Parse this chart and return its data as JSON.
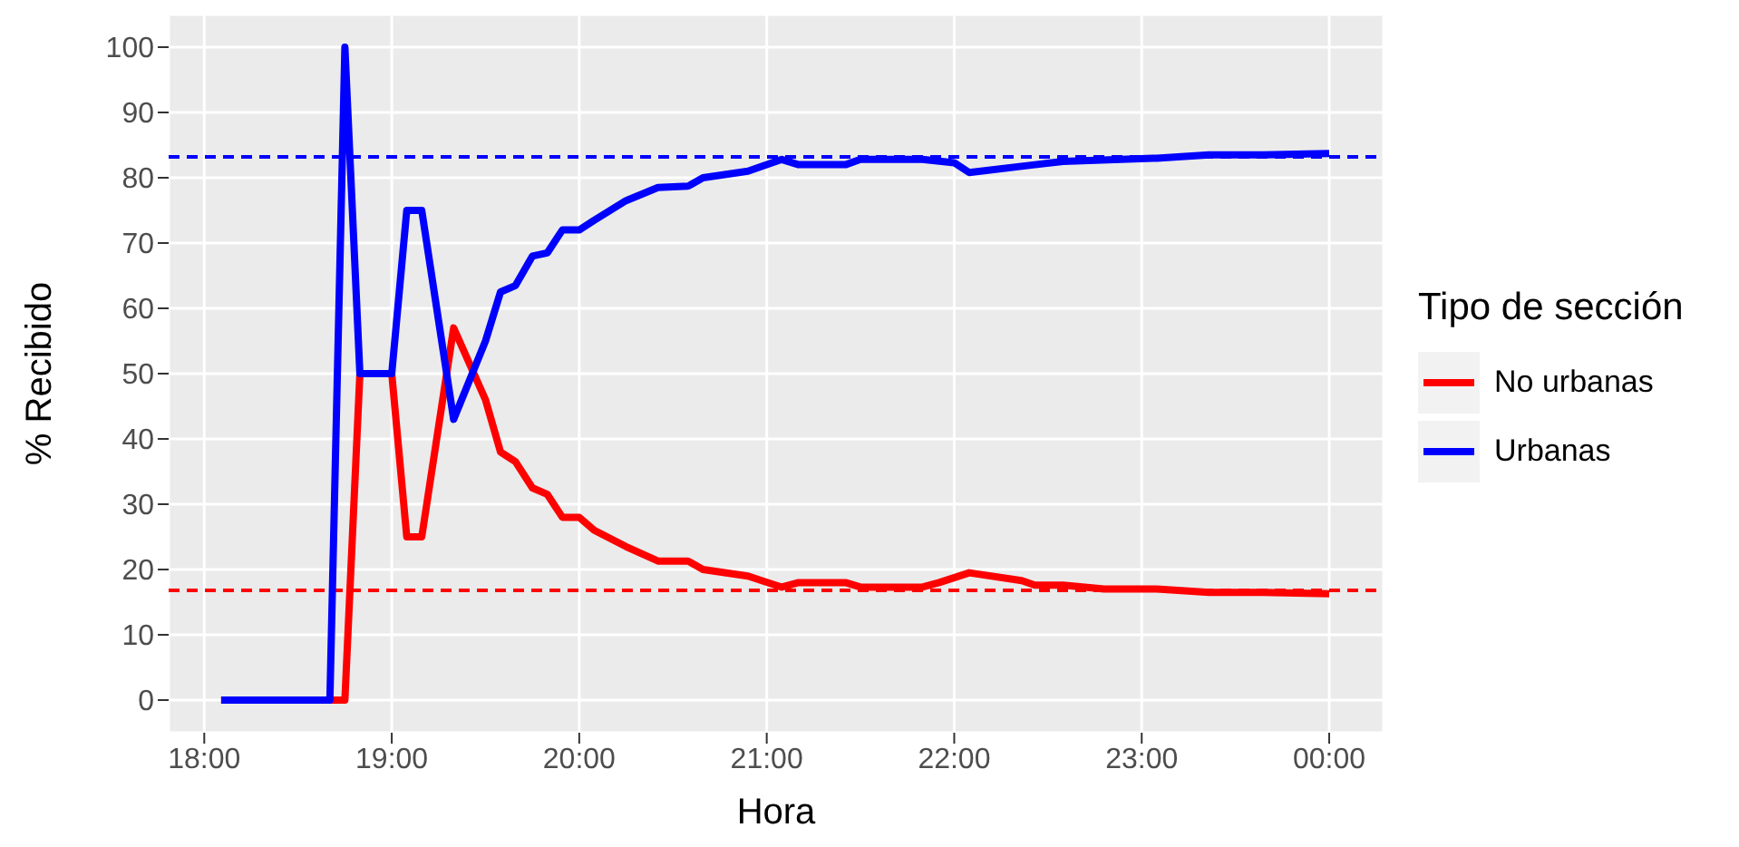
{
  "chart_data": {
    "type": "line",
    "xlabel": "Hora",
    "ylabel": "% Recibido",
    "legend_title": "Tipo de sección",
    "legend": "right",
    "grid": true,
    "line_style": "solid",
    "marker": "none",
    "xlim": [
      17.81,
      24.29
    ],
    "ylim": [
      -5,
      105
    ],
    "xticks": [
      {
        "value": 18,
        "label": "18:00"
      },
      {
        "value": 19,
        "label": "19:00"
      },
      {
        "value": 20,
        "label": "20:00"
      },
      {
        "value": 21,
        "label": "21:00"
      },
      {
        "value": 22,
        "label": "22:00"
      },
      {
        "value": 23,
        "label": "23:00"
      },
      {
        "value": 24,
        "label": "00:00"
      }
    ],
    "yticks": [
      0,
      10,
      20,
      30,
      40,
      50,
      60,
      70,
      80,
      90,
      100
    ],
    "series": [
      {
        "name": "No urbanas",
        "color": "#ff0000",
        "x": [
          18.09,
          18.75,
          18.83,
          19.0,
          19.08,
          19.16,
          19.33,
          19.5,
          19.58,
          19.66,
          19.75,
          19.83,
          19.91,
          20.0,
          20.08,
          20.25,
          20.42,
          20.58,
          20.66,
          20.9,
          21.08,
          21.17,
          21.42,
          21.5,
          21.83,
          21.92,
          22.08,
          22.36,
          22.43,
          22.58,
          22.8,
          23.08,
          23.36,
          23.65,
          24.0
        ],
        "values": [
          0,
          0,
          50,
          50,
          25,
          25,
          57,
          46,
          38,
          36.5,
          32.5,
          31.5,
          28,
          28,
          26,
          23.5,
          21.3,
          21.3,
          20,
          19,
          17.3,
          18,
          18,
          17.3,
          17.3,
          18,
          19.5,
          18.3,
          17.6,
          17.6,
          17,
          17,
          16.5,
          16.5,
          16.3
        ]
      },
      {
        "name": "Urbanas",
        "color": "#0000ff",
        "x": [
          18.09,
          18.67,
          18.75,
          18.83,
          19.0,
          19.08,
          19.16,
          19.33,
          19.5,
          19.58,
          19.66,
          19.75,
          19.83,
          19.91,
          20.0,
          20.08,
          20.25,
          20.42,
          20.58,
          20.66,
          20.9,
          21.08,
          21.17,
          21.42,
          21.5,
          21.83,
          22.0,
          22.08,
          22.43,
          22.58,
          23.08,
          23.36,
          23.65,
          24.0
        ],
        "values": [
          0,
          0,
          100,
          50,
          50,
          75,
          75,
          43,
          55,
          62.5,
          63.5,
          68,
          68.5,
          72,
          72,
          73.5,
          76.5,
          78.5,
          78.7,
          80,
          81,
          82.8,
          82,
          82,
          82.8,
          82.8,
          82.3,
          80.8,
          82,
          82.5,
          83,
          83.5,
          83.5,
          83.7
        ]
      }
    ],
    "ref_lines": [
      {
        "axis": "y",
        "value": 83.2,
        "color": "#0000ff",
        "line_style": "dashed"
      },
      {
        "axis": "y",
        "value": 16.8,
        "color": "#ff0000",
        "line_style": "dashed"
      }
    ]
  }
}
